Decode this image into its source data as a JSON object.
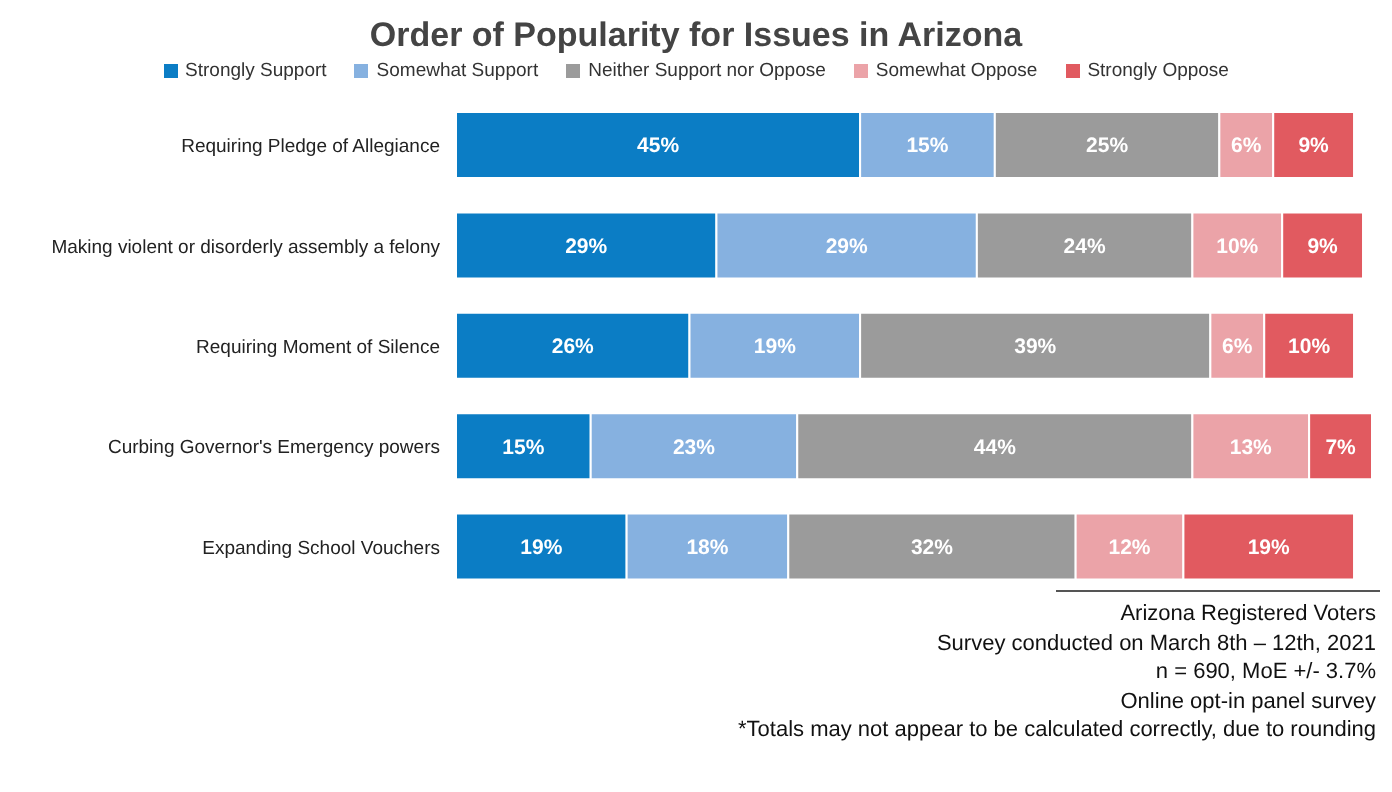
{
  "chart_data": {
    "type": "bar",
    "orientation": "horizontal",
    "stacked": true,
    "title": "Order of Popularity for Issues in Arizona",
    "categories": [
      "Requiring Pledge of Allegiance",
      "Making violent or disorderly assembly a felony",
      "Requiring Moment of Silence",
      "Curbing Governor's Emergency powers",
      "Expanding School Vouchers"
    ],
    "series": [
      {
        "name": "Strongly Support",
        "color": "#0b7dc5",
        "values": [
          45,
          29,
          26,
          15,
          19
        ],
        "value_labels": [
          "45%",
          "29%",
          "26%",
          "15%",
          "19%"
        ]
      },
      {
        "name": "Somewhat Support",
        "color": "#86b1e0",
        "values": [
          15,
          29,
          19,
          23,
          18
        ],
        "value_labels": [
          "15%",
          "29%",
          "19%",
          "23%",
          "18%"
        ]
      },
      {
        "name": "Neither Support nor Oppose",
        "color": "#9b9b9b",
        "values": [
          25,
          24,
          39,
          44,
          32
        ],
        "value_labels": [
          "25%",
          "24%",
          "39%",
          "44%",
          "32%"
        ]
      },
      {
        "name": "Somewhat Oppose",
        "color": "#eba3a8",
        "values": [
          6,
          10,
          6,
          13,
          12
        ],
        "value_labels": [
          "6%",
          "10%",
          "6%",
          "13%",
          "12%"
        ]
      },
      {
        "name": "Strongly Oppose",
        "color": "#e15a60",
        "values": [
          9,
          9,
          10,
          7,
          19
        ],
        "value_labels": [
          "9%",
          "9%",
          "10%",
          "7%",
          "19%"
        ]
      }
    ],
    "legend": "top",
    "grid": false,
    "annotations": [
      "Arizona Registered Voters",
      "Survey conducted on March 8th – 12th, 2021",
      "n = 690, MoE +/- 3.7%",
      "Online opt-in panel survey",
      "*Totals may not appear to be calculated correctly, due to rounding"
    ]
  }
}
